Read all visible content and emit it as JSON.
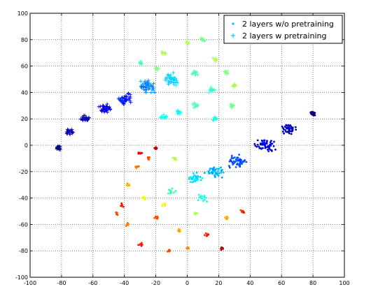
{
  "chart_data": {
    "type": "scatter",
    "title": "",
    "xlabel": "",
    "ylabel": "",
    "xlim": [
      -100,
      100
    ],
    "ylim": [
      -100,
      100
    ],
    "xticks": [
      -100,
      -80,
      -60,
      -40,
      -20,
      0,
      20,
      40,
      60,
      80,
      100
    ],
    "yticks": [
      -100,
      -80,
      -60,
      -40,
      -20,
      0,
      20,
      40,
      60,
      80,
      100
    ],
    "grid": true,
    "grid_style": "dotted",
    "legend_position": "top-right",
    "colormap": "jet",
    "series": [
      {
        "name": "2 layers w/o pretraining",
        "marker": "dot",
        "value_range": [
          0,
          1
        ],
        "clusters": [
          {
            "center": [
              80,
              24
            ],
            "spread": [
              2,
              2
            ],
            "count": 25,
            "value": 0.0
          },
          {
            "center": [
              65,
              12
            ],
            "spread": [
              6,
              5
            ],
            "count": 45,
            "value": 0.05
          },
          {
            "center": [
              50,
              0
            ],
            "spread": [
              8,
              6
            ],
            "count": 55,
            "value": 0.1
          },
          {
            "center": [
              32,
              -12
            ],
            "spread": [
              9,
              6
            ],
            "count": 55,
            "value": 0.2
          },
          {
            "center": [
              18,
              -20
            ],
            "spread": [
              8,
              6
            ],
            "count": 45,
            "value": 0.3
          },
          {
            "center": [
              5,
              -25
            ],
            "spread": [
              6,
              5
            ],
            "count": 35,
            "value": 0.35
          },
          {
            "center": [
              -8,
              -10
            ],
            "spread": [
              2,
              2
            ],
            "count": 10,
            "value": 0.55
          },
          {
            "center": [
              -20,
              -2
            ],
            "spread": [
              2,
              2
            ],
            "count": 8,
            "value": 0.95
          },
          {
            "center": [
              -30,
              -6
            ],
            "spread": [
              2,
              2
            ],
            "count": 8,
            "value": 0.9
          },
          {
            "center": [
              -32,
              -16
            ],
            "spread": [
              2,
              2
            ],
            "count": 8,
            "value": 0.75
          },
          {
            "center": [
              -38,
              -30
            ],
            "spread": [
              2,
              2
            ],
            "count": 8,
            "value": 0.7
          },
          {
            "center": [
              -42,
              -45
            ],
            "spread": [
              2,
              2
            ],
            "count": 8,
            "value": 0.85
          },
          {
            "center": [
              -45,
              -52
            ],
            "spread": [
              2,
              2
            ],
            "count": 8,
            "value": 0.8
          },
          {
            "center": [
              -38,
              -60
            ],
            "spread": [
              2,
              2
            ],
            "count": 8,
            "value": 0.75
          },
          {
            "center": [
              -30,
              -75
            ],
            "spread": [
              2,
              2
            ],
            "count": 8,
            "value": 0.85
          },
          {
            "center": [
              -28,
              -40
            ],
            "spread": [
              2,
              2
            ],
            "count": 8,
            "value": 0.6
          },
          {
            "center": [
              -20,
              -55
            ],
            "spread": [
              2,
              2
            ],
            "count": 8,
            "value": 0.8
          },
          {
            "center": [
              -15,
              -45
            ],
            "spread": [
              2,
              2
            ],
            "count": 8,
            "value": 0.65
          },
          {
            "center": [
              -12,
              -80
            ],
            "spread": [
              2,
              2
            ],
            "count": 8,
            "value": 0.8
          },
          {
            "center": [
              -5,
              -65
            ],
            "spread": [
              2,
              2
            ],
            "count": 8,
            "value": 0.7
          },
          {
            "center": [
              0,
              -78
            ],
            "spread": [
              2,
              2
            ],
            "count": 8,
            "value": 0.75
          },
          {
            "center": [
              5,
              -52
            ],
            "spread": [
              2,
              2
            ],
            "count": 8,
            "value": 0.55
          },
          {
            "center": [
              12,
              -68
            ],
            "spread": [
              2,
              2
            ],
            "count": 8,
            "value": 0.85
          },
          {
            "center": [
              22,
              -78
            ],
            "spread": [
              2,
              2
            ],
            "count": 8,
            "value": 0.95
          },
          {
            "center": [
              25,
              -55
            ],
            "spread": [
              2,
              2
            ],
            "count": 8,
            "value": 0.7
          },
          {
            "center": [
              35,
              -50
            ],
            "spread": [
              2,
              2
            ],
            "count": 8,
            "value": 0.85
          },
          {
            "center": [
              -25,
              -10
            ],
            "spread": [
              2,
              2
            ],
            "count": 6,
            "value": 0.8
          },
          {
            "center": [
              -10,
              -35
            ],
            "spread": [
              4,
              4
            ],
            "count": 15,
            "value": 0.45
          },
          {
            "center": [
              10,
              -40
            ],
            "spread": [
              5,
              4
            ],
            "count": 15,
            "value": 0.4
          }
        ]
      },
      {
        "name": "2 layers w pretraining",
        "marker": "plus",
        "value_range": [
          0,
          1
        ],
        "clusters": [
          {
            "center": [
              -82,
              -2
            ],
            "spread": [
              2,
              2
            ],
            "count": 25,
            "value": 0.0
          },
          {
            "center": [
              -75,
              10
            ],
            "spread": [
              3,
              3
            ],
            "count": 20,
            "value": 0.05
          },
          {
            "center": [
              -65,
              20
            ],
            "spread": [
              5,
              3
            ],
            "count": 30,
            "value": 0.07
          },
          {
            "center": [
              -52,
              28
            ],
            "spread": [
              5,
              4
            ],
            "count": 35,
            "value": 0.1
          },
          {
            "center": [
              -40,
              35
            ],
            "spread": [
              6,
              5
            ],
            "count": 40,
            "value": 0.15
          },
          {
            "center": [
              -25,
              45
            ],
            "spread": [
              7,
              6
            ],
            "count": 45,
            "value": 0.25
          },
          {
            "center": [
              -10,
              50
            ],
            "spread": [
              7,
              6
            ],
            "count": 40,
            "value": 0.33
          },
          {
            "center": [
              -30,
              62
            ],
            "spread": [
              2,
              2
            ],
            "count": 8,
            "value": 0.45
          },
          {
            "center": [
              -15,
              70
            ],
            "spread": [
              2,
              2
            ],
            "count": 8,
            "value": 0.55
          },
          {
            "center": [
              0,
              78
            ],
            "spread": [
              2,
              2
            ],
            "count": 8,
            "value": 0.55
          },
          {
            "center": [
              10,
              80
            ],
            "spread": [
              2,
              2
            ],
            "count": 8,
            "value": 0.5
          },
          {
            "center": [
              18,
              65
            ],
            "spread": [
              2,
              2
            ],
            "count": 8,
            "value": 0.55
          },
          {
            "center": [
              25,
              55
            ],
            "spread": [
              2,
              2
            ],
            "count": 8,
            "value": 0.5
          },
          {
            "center": [
              30,
              45
            ],
            "spread": [
              2,
              2
            ],
            "count": 8,
            "value": 0.55
          },
          {
            "center": [
              28,
              30
            ],
            "spread": [
              2,
              2
            ],
            "count": 8,
            "value": 0.5
          },
          {
            "center": [
              18,
              20
            ],
            "spread": [
              2,
              2
            ],
            "count": 8,
            "value": 0.4
          },
          {
            "center": [
              5,
              30
            ],
            "spread": [
              3,
              3
            ],
            "count": 12,
            "value": 0.45
          },
          {
            "center": [
              -5,
              25
            ],
            "spread": [
              3,
              3
            ],
            "count": 12,
            "value": 0.38
          },
          {
            "center": [
              -15,
              22
            ],
            "spread": [
              3,
              3
            ],
            "count": 12,
            "value": 0.4
          },
          {
            "center": [
              5,
              55
            ],
            "spread": [
              3,
              3
            ],
            "count": 12,
            "value": 0.45
          },
          {
            "center": [
              -20,
              58
            ],
            "spread": [
              2,
              2
            ],
            "count": 8,
            "value": 0.5
          },
          {
            "center": [
              15,
              42
            ],
            "spread": [
              3,
              3
            ],
            "count": 10,
            "value": 0.42
          }
        ]
      }
    ]
  }
}
